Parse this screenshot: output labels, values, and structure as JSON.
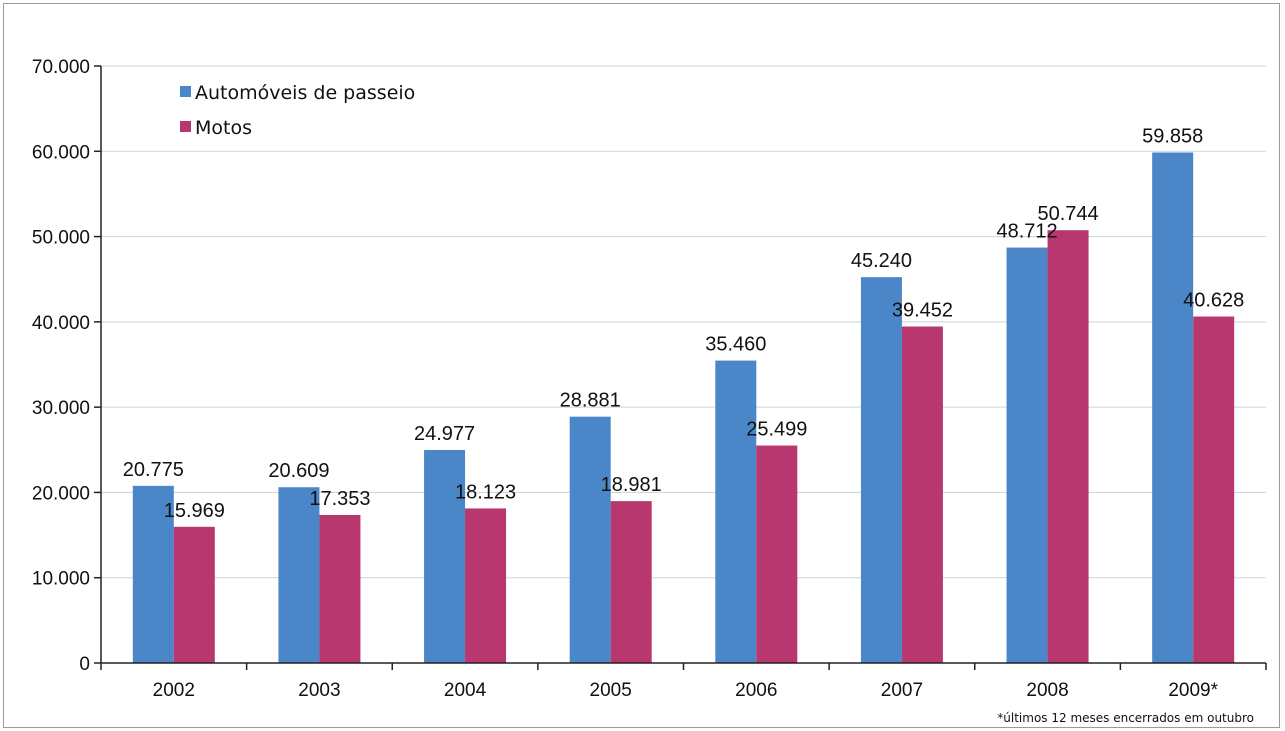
{
  "chart_data": {
    "type": "bar",
    "title": "",
    "xlabel": "",
    "ylabel": "",
    "categories": [
      "2002",
      "2003",
      "2004",
      "2005",
      "2006",
      "2007",
      "2008",
      "2009*"
    ],
    "series": [
      {
        "name": "Automóveis de passeio",
        "color": "#4a86c8",
        "values": [
          20775,
          20609,
          24977,
          28881,
          35460,
          45240,
          48712,
          59858
        ],
        "labels": [
          "20.775",
          "20.609",
          "24.977",
          "28.881",
          "35.460",
          "45.240",
          "48.712",
          "59.858"
        ]
      },
      {
        "name": "Motos",
        "color": "#b8376e",
        "values": [
          15969,
          17353,
          18123,
          18981,
          25499,
          39452,
          50744,
          40628
        ],
        "labels": [
          "15.969",
          "17.353",
          "18.123",
          "18.981",
          "25.499",
          "39.452",
          "50.744",
          "40.628"
        ]
      }
    ],
    "ylim": [
      0,
      70000
    ],
    "yticks": [
      0,
      10000,
      20000,
      30000,
      40000,
      50000,
      60000,
      70000
    ],
    "ytick_labels": [
      "0",
      "10.000",
      "20.000",
      "30.000",
      "40.000",
      "50.000",
      "60.000",
      "70.000"
    ],
    "grid": true,
    "legend_position": "top-left",
    "footnote": "*últimos 12 meses encerrados em outubro"
  }
}
